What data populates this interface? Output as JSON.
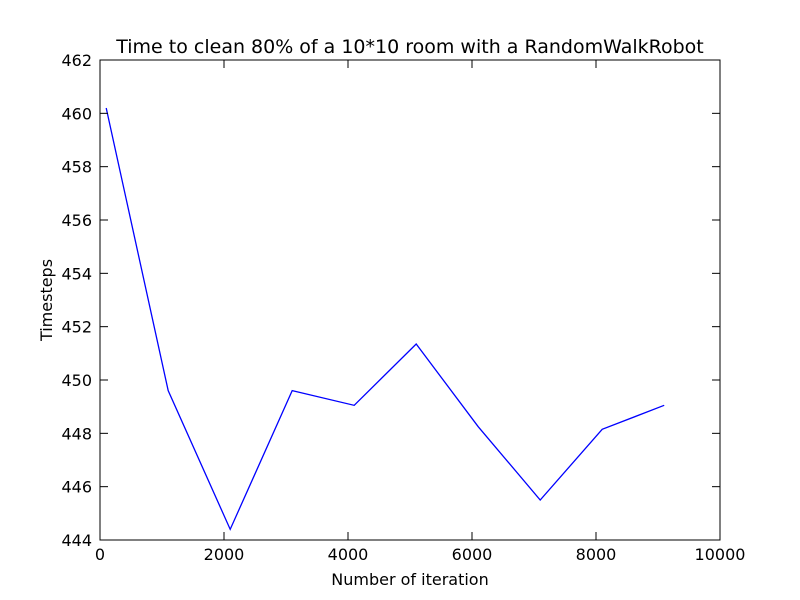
{
  "chart_data": {
    "type": "line",
    "title": "Time to clean 80% of a 10*10 room with a RandomWalkRobot",
    "xlabel": "Number of iteration",
    "ylabel": "Timesteps",
    "xlim": [
      0,
      10000
    ],
    "ylim": [
      444,
      462
    ],
    "xticks": [
      0,
      2000,
      4000,
      6000,
      8000,
      10000
    ],
    "yticks": [
      444,
      446,
      448,
      450,
      452,
      454,
      456,
      458,
      460,
      462
    ],
    "grid": false,
    "series": [
      {
        "color": "#0000ff",
        "x": [
          100,
          1100,
          2100,
          3100,
          4100,
          5100,
          6100,
          7100,
          8100,
          9100
        ],
        "y": [
          460.2,
          449.6,
          444.4,
          449.6,
          449.05,
          451.35,
          448.25,
          445.5,
          448.15,
          449.05
        ]
      }
    ]
  }
}
